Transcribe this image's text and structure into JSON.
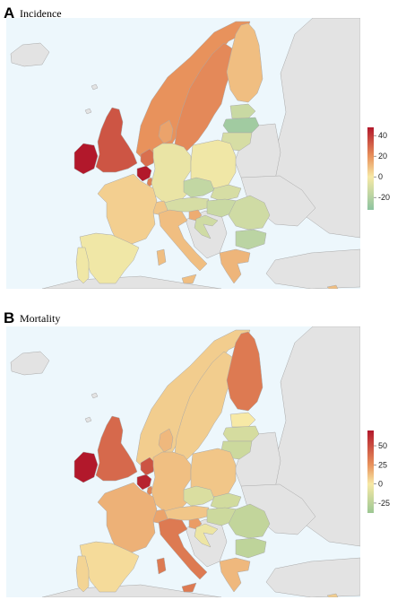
{
  "panels": [
    {
      "id": "incidence",
      "label": "A",
      "title": "Incidence",
      "legend": {
        "ticks": [
          40,
          20,
          0,
          -20
        ],
        "min": -32,
        "max": 48,
        "stops": [
          {
            "value": 48,
            "color": "#b2182b"
          },
          {
            "value": 20,
            "color": "#e8925c"
          },
          {
            "value": 0,
            "color": "#f7e9a6"
          },
          {
            "value": -32,
            "color": "#8dc4a0"
          }
        ]
      },
      "countries": {
        "Ireland": 48,
        "United Kingdom": 34,
        "Netherlands": 28,
        "Belgium": 48,
        "Denmark": 16,
        "Norway": 20,
        "Sweden": 22,
        "Finland": 10,
        "France": 6,
        "Spain": -2,
        "Portugal": -2,
        "Italy": 10,
        "Germany": -4,
        "Poland": -2,
        "Czechia": -16,
        "Slovakia": -10,
        "Austria": -10,
        "Switzerland": 8,
        "Hungary": -14,
        "Slovenia": 14,
        "Croatia": -12,
        "Romania": -12,
        "Bulgaria": -18,
        "Greece": 12,
        "Estonia": -14,
        "Latvia": -26,
        "Lithuania": -10,
        "Luxembourg": 24,
        "Cyprus": 10
      }
    },
    {
      "id": "mortality",
      "label": "B",
      "title": "Mortality",
      "legend": {
        "ticks": [
          50,
          25,
          0,
          -25
        ],
        "min": -38,
        "max": 70,
        "stops": [
          {
            "value": 70,
            "color": "#b2182b"
          },
          {
            "value": 25,
            "color": "#e8925c"
          },
          {
            "value": 0,
            "color": "#f7e9a6"
          },
          {
            "value": -38,
            "color": "#9cc793"
          }
        ]
      },
      "countries": {
        "Ireland": 70,
        "United Kingdom": 40,
        "Netherlands": 48,
        "Belgium": 66,
        "Denmark": 14,
        "Norway": 8,
        "Sweden": 8,
        "Finland": 34,
        "France": 16,
        "Spain": 4,
        "Portugal": 6,
        "Italy": 34,
        "Germany": 12,
        "Poland": 10,
        "Czechia": -12,
        "Slovakia": -16,
        "Austria": 10,
        "Switzerland": 20,
        "Hungary": -18,
        "Slovenia": 22,
        "Croatia": -4,
        "Romania": -22,
        "Bulgaria": -24,
        "Greece": 14,
        "Estonia": 0,
        "Latvia": -14,
        "Lithuania": -18,
        "Luxembourg": 30,
        "Cyprus": 8
      }
    }
  ]
}
